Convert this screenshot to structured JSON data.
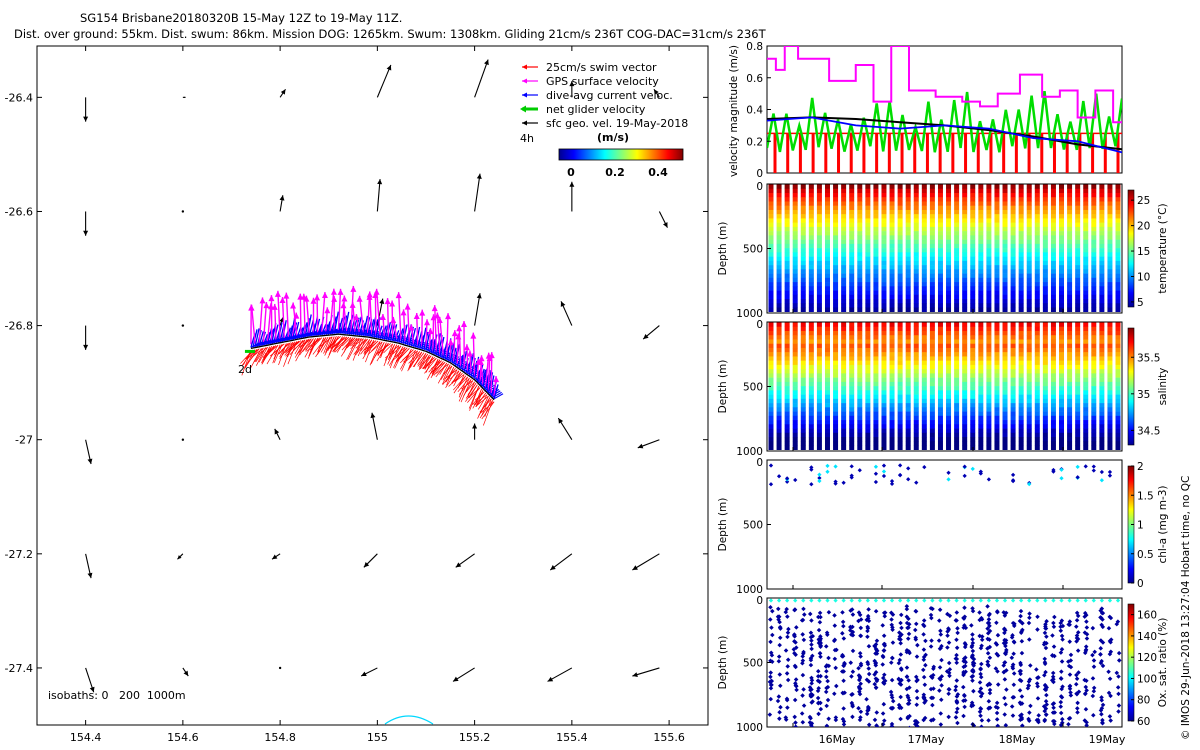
{
  "title": {
    "line1": "SG154 Brisbane20180320B 15-May 12Z to 19-May 11Z.",
    "line2": "Dist. over ground: 55km. Dist. swum: 86km. Mission DOG: 1265km. Swum: 1308km. Gliding 21cm/s 236T COG-DAC=31cm/s 236T"
  },
  "credit": "© IMOS 29-Jun-2018 13:27:04 Hobart time, no QC",
  "chart_data": [
    {
      "type": "scatter",
      "panel": "map",
      "xlim": [
        154.3,
        155.68
      ],
      "ylim": [
        -27.5,
        -26.31
      ],
      "xticks": [
        "154.4",
        "154.6",
        "154.8",
        "155",
        "155.2",
        "155.4",
        "155.6"
      ],
      "yticks": [
        "-26.4",
        "-26.6",
        "-26.8",
        "-27",
        "-27.2",
        "-27.4"
      ],
      "legend": {
        "placement": "top-right",
        "entries": [
          {
            "label": "25cm/s swim vector",
            "color": "#ff0000"
          },
          {
            "label": "GPS surface velocity",
            "color": "#ff00ff"
          },
          {
            "label": "dive-avg current veloc.",
            "color": "#0000ff"
          },
          {
            "label": "net glider velocity",
            "color": "#00cc00"
          },
          {
            "label": "sfc geo. vel. 19-May-2018",
            "color": "#000000"
          }
        ]
      },
      "colorbar": {
        "ticks": [
          "0",
          "0.2",
          "0.4"
        ],
        "unit": "(m/s)"
      },
      "labels": {
        "time_4h": "4h",
        "time_2d": "2d",
        "isobaths": "isobaths: 0   200  1000m"
      },
      "track_x": [
        154.74,
        154.8,
        154.86,
        154.92,
        154.98,
        155.04,
        155.1,
        155.15,
        155.2,
        155.24
      ],
      "track_y": [
        -26.84,
        -26.83,
        -26.82,
        -26.815,
        -26.82,
        -26.83,
        -26.845,
        -26.865,
        -26.895,
        -26.93
      ],
      "geo_vectors": {
        "lon": [
          154.4,
          154.6,
          154.8,
          155.0,
          155.2,
          155.4,
          155.58
        ],
        "lat": [
          -26.4,
          -26.6,
          -26.8,
          -27.0,
          -27.2,
          -27.4
        ],
        "u": [
          [
            0.0,
            0.01,
            0.02,
            0.05,
            0.05,
            0.0,
            -0.02
          ],
          [
            0.0,
            0.0,
            0.01,
            0.01,
            0.02,
            0.0,
            0.03
          ],
          [
            0.0,
            0.0,
            0.01,
            0.02,
            0.02,
            -0.04,
            -0.06
          ],
          [
            0.02,
            0.0,
            -0.02,
            -0.02,
            0.0,
            -0.05,
            -0.08
          ],
          [
            0.02,
            -0.02,
            -0.03,
            -0.05,
            -0.07,
            -0.08,
            -0.1
          ],
          [
            0.03,
            0.02,
            0.0,
            -0.06,
            -0.08,
            -0.09,
            -0.1
          ]
        ],
        "v": [
          [
            -0.09,
            0.0,
            0.03,
            0.12,
            0.14,
            0.06,
            0.03
          ],
          [
            -0.09,
            0.0,
            0.06,
            0.12,
            0.14,
            0.11,
            -0.06
          ],
          [
            -0.09,
            0.0,
            0.03,
            0.1,
            0.12,
            0.09,
            -0.05
          ],
          [
            -0.09,
            0.0,
            0.04,
            0.1,
            0.06,
            0.08,
            -0.03
          ],
          [
            -0.09,
            -0.02,
            -0.02,
            -0.05,
            -0.05,
            -0.06,
            -0.06
          ],
          [
            -0.09,
            -0.03,
            0.0,
            -0.03,
            -0.05,
            -0.05,
            -0.03
          ]
        ]
      }
    },
    {
      "type": "line",
      "panel": "velocity",
      "ylabel": "velocity magnitude (m/s)",
      "ylim": [
        0,
        0.8
      ],
      "yticks": [
        "0",
        "0.2",
        "0.4",
        "0.6",
        "0.8"
      ],
      "xlim": [
        15.5,
        19.5
      ],
      "series": [
        {
          "color": "#ff00ff",
          "x": [
            15.5,
            15.6,
            15.7,
            15.85,
            16.2,
            16.5,
            16.7,
            16.9,
            17.1,
            17.4,
            17.7,
            17.9,
            18.1,
            18.35,
            18.6,
            18.8,
            19.0,
            19.2,
            19.4
          ],
          "y": [
            0.72,
            0.65,
            0.8,
            0.72,
            0.58,
            0.68,
            0.45,
            0.8,
            0.52,
            0.48,
            0.45,
            0.42,
            0.5,
            0.62,
            0.48,
            0.52,
            0.35,
            0.52,
            0.32
          ]
        },
        {
          "color": "#000000",
          "x": [
            15.5,
            16.0,
            16.5,
            17.0,
            17.5,
            18.0,
            18.5,
            19.0,
            19.5
          ],
          "y": [
            0.34,
            0.35,
            0.34,
            0.32,
            0.3,
            0.27,
            0.23,
            0.18,
            0.15
          ]
        },
        {
          "color": "#0000ff",
          "x": [
            15.5,
            16.0,
            16.5,
            17.0,
            17.5,
            18.0,
            18.5,
            19.0,
            19.5
          ],
          "y": [
            0.33,
            0.35,
            0.3,
            0.28,
            0.3,
            0.28,
            0.22,
            0.2,
            0.13
          ]
        },
        {
          "color": "#00dd00",
          "x": [
            15.5,
            16.0,
            16.5,
            17.0,
            17.5,
            18.0,
            18.5,
            19.0,
            19.5
          ],
          "y": [
            0.15,
            0.17,
            0.15,
            0.16,
            0.14,
            0.15,
            0.13,
            0.14,
            0.14
          ]
        },
        {
          "color": "#ff0000",
          "type": "bar",
          "value": 0.25
        }
      ]
    },
    {
      "type": "heatmap",
      "panel": "temperature",
      "ylabel": "Depth (m)",
      "clabel": "temperature (°C)",
      "yticks": [
        "0",
        "500",
        "1000"
      ],
      "cticks": [
        "25",
        "20",
        "15",
        "10",
        "5"
      ],
      "clim": [
        4,
        27
      ]
    },
    {
      "type": "heatmap",
      "panel": "salinity",
      "ylabel": "Depth (m)",
      "clabel": "salinity",
      "yticks": [
        "0",
        "500",
        "1000"
      ],
      "cticks": [
        "35.5",
        "35",
        "34.5"
      ],
      "clim": [
        34.3,
        35.9
      ]
    },
    {
      "type": "scatter",
      "panel": "chlorophyll",
      "ylabel": "Depth (m)",
      "clabel": "chl-a (mg m-3)",
      "yticks": [
        "0",
        "500",
        "1000"
      ],
      "cticks": [
        "2",
        "1.5",
        "1",
        "0.5",
        "0"
      ],
      "clim": [
        0,
        2
      ]
    },
    {
      "type": "scatter",
      "panel": "oxygen",
      "ylabel": "Depth (m)",
      "clabel": "Ox. sat. ratio (%)",
      "yticks": [
        "0",
        "500",
        "1000"
      ],
      "cticks": [
        "160",
        "140",
        "120",
        "100",
        "80",
        "60"
      ],
      "clim": [
        60,
        170
      ],
      "xticks": [
        "16May",
        "17May",
        "18May",
        "19May"
      ]
    }
  ]
}
